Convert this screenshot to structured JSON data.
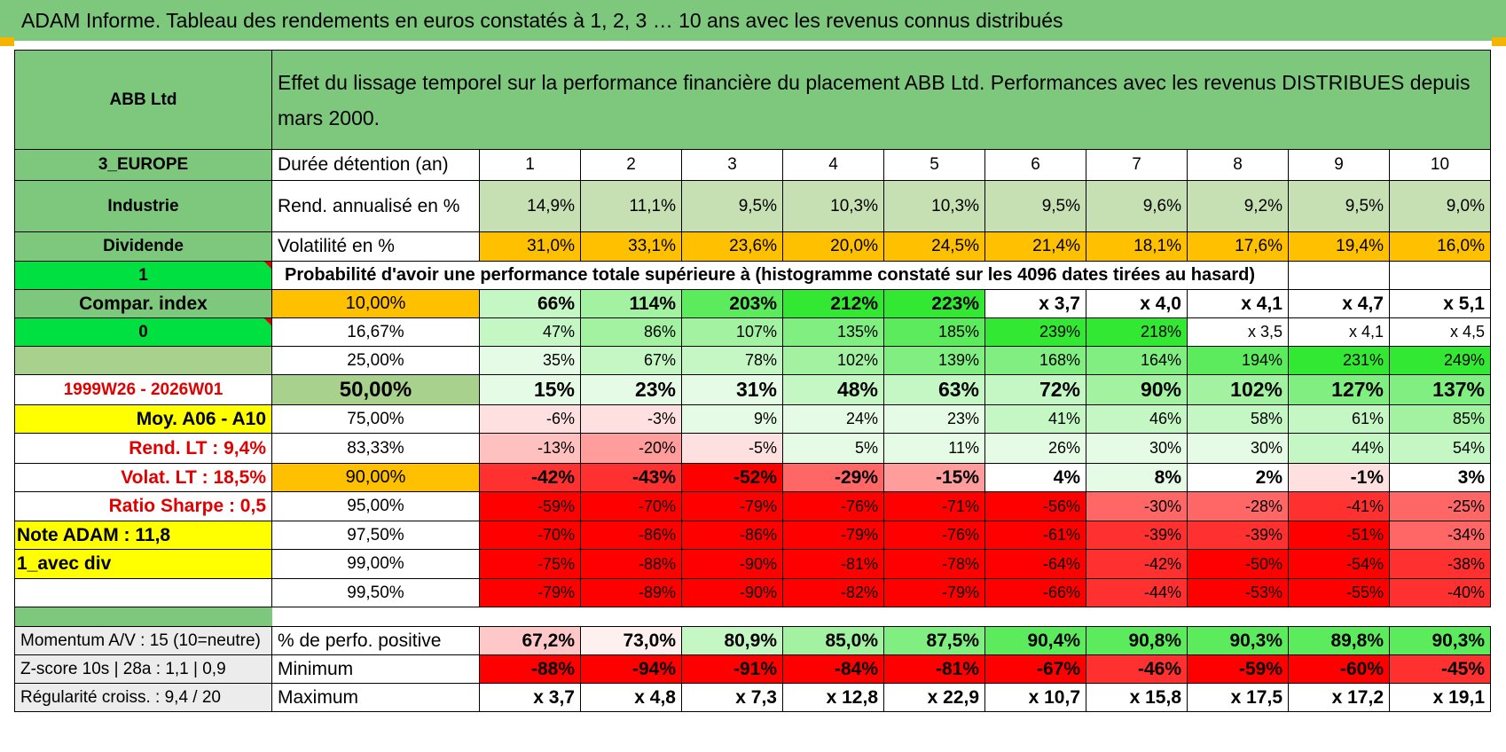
{
  "title": "ADAM Informe. Tableau des rendements en euros constatés à 1, 2, 3 … 10 ans avec les revenus connus distribués",
  "header": {
    "name": "ABB Ltd",
    "description": "Effet du lissage temporel sur la performance financière du placement ABB Ltd. Performances avec les revenus DISTRIBUES depuis mars 2000."
  },
  "side": {
    "region": "3_EUROPE",
    "sector": "Industrie",
    "dividend": "Dividende",
    "flag1": "1",
    "compar": "Compar. index",
    "flag0": "0",
    "period": "1999W26 - 2026W01",
    "moy": "Moy. A06 - A10",
    "rend_lt_label": "Rend. LT :",
    "rend_lt_value": "9,4%",
    "volat_lt_label": "Volat. LT :",
    "volat_lt_value": "18,5%",
    "sharpe_label": "Ratio Sharpe :",
    "sharpe_value": "0,5",
    "note": "Note ADAM : 11,8",
    "avec_div": "1_avec div"
  },
  "durations_label": "Durée détention (an)",
  "durations": [
    "1",
    "2",
    "3",
    "4",
    "5",
    "6",
    "7",
    "8",
    "9",
    "10"
  ],
  "rend_label": "Rend. annualisé en %",
  "rend": [
    "14,9%",
    "11,1%",
    "9,5%",
    "10,3%",
    "10,3%",
    "9,5%",
    "9,6%",
    "9,2%",
    "9,5%",
    "9,0%"
  ],
  "vol_label": "Volatilité en %",
  "vol": [
    "31,0%",
    "33,1%",
    "23,6%",
    "20,0%",
    "24,5%",
    "21,4%",
    "18,1%",
    "17,6%",
    "19,4%",
    "16,0%"
  ],
  "prob_title": "Probabilité d'avoir une performance totale supérieure à (histogramme constaté sur les 4096 dates tirées au hasard)",
  "prob_rows": [
    {
      "p": "10,00%",
      "v": [
        "66%",
        "114%",
        "203%",
        "212%",
        "223%",
        "x 3,7",
        "x 4,0",
        "x 4,1",
        "x 4,7",
        "x 5,1"
      ]
    },
    {
      "p": "16,67%",
      "v": [
        "47%",
        "86%",
        "107%",
        "135%",
        "185%",
        "239%",
        "218%",
        "x 3,5",
        "x 4,1",
        "x 4,5"
      ]
    },
    {
      "p": "25,00%",
      "v": [
        "35%",
        "67%",
        "78%",
        "102%",
        "139%",
        "168%",
        "164%",
        "194%",
        "231%",
        "249%"
      ]
    },
    {
      "p": "50,00%",
      "v": [
        "15%",
        "23%",
        "31%",
        "48%",
        "63%",
        "72%",
        "90%",
        "102%",
        "127%",
        "137%"
      ]
    },
    {
      "p": "75,00%",
      "v": [
        "-6%",
        "-3%",
        "9%",
        "24%",
        "23%",
        "41%",
        "46%",
        "58%",
        "61%",
        "85%"
      ]
    },
    {
      "p": "83,33%",
      "v": [
        "-13%",
        "-20%",
        "-5%",
        "5%",
        "11%",
        "26%",
        "30%",
        "30%",
        "44%",
        "54%"
      ]
    },
    {
      "p": "90,00%",
      "v": [
        "-42%",
        "-43%",
        "-52%",
        "-29%",
        "-15%",
        "4%",
        "8%",
        "2%",
        "-1%",
        "3%"
      ]
    },
    {
      "p": "95,00%",
      "v": [
        "-59%",
        "-70%",
        "-79%",
        "-76%",
        "-71%",
        "-56%",
        "-30%",
        "-28%",
        "-41%",
        "-25%"
      ]
    },
    {
      "p": "97,50%",
      "v": [
        "-70%",
        "-86%",
        "-86%",
        "-79%",
        "-76%",
        "-61%",
        "-39%",
        "-39%",
        "-51%",
        "-34%"
      ]
    },
    {
      "p": "99,00%",
      "v": [
        "-75%",
        "-88%",
        "-90%",
        "-81%",
        "-78%",
        "-64%",
        "-42%",
        "-50%",
        "-54%",
        "-38%"
      ]
    },
    {
      "p": "99,50%",
      "v": [
        "-79%",
        "-89%",
        "-90%",
        "-82%",
        "-79%",
        "-66%",
        "-44%",
        "-53%",
        "-55%",
        "-40%"
      ]
    }
  ],
  "footer": [
    {
      "left": "Momentum A/V : 15 (10=neutre)",
      "label": "% de perfo. positive",
      "v": [
        "67,2%",
        "73,0%",
        "80,9%",
        "85,0%",
        "87,5%",
        "90,4%",
        "90,8%",
        "90,3%",
        "89,8%",
        "90,3%"
      ]
    },
    {
      "left": "Z-score 10s | 28a : 1,1 | 0,9",
      "label": "Minimum",
      "v": [
        "-88%",
        "-94%",
        "-91%",
        "-84%",
        "-81%",
        "-67%",
        "-46%",
        "-59%",
        "-60%",
        "-45%"
      ]
    },
    {
      "left": "Régularité croiss. : 9,4 / 20",
      "label": "Maximum",
      "v": [
        "x 3,7",
        "x 4,8",
        "x 7,3",
        "x 12,8",
        "x 22,9",
        "x 10,7",
        "x 15,8",
        "x 17,5",
        "x 17,2",
        "x 19,1"
      ]
    }
  ],
  "colors": {
    "header_green": "#7dc87d",
    "yellow": "#ffff00",
    "orange": "#ffc000",
    "lime": "#00e040",
    "red_text": "#e00000",
    "strong_red": "#ff0000",
    "strong_green": "#33ee33"
  }
}
